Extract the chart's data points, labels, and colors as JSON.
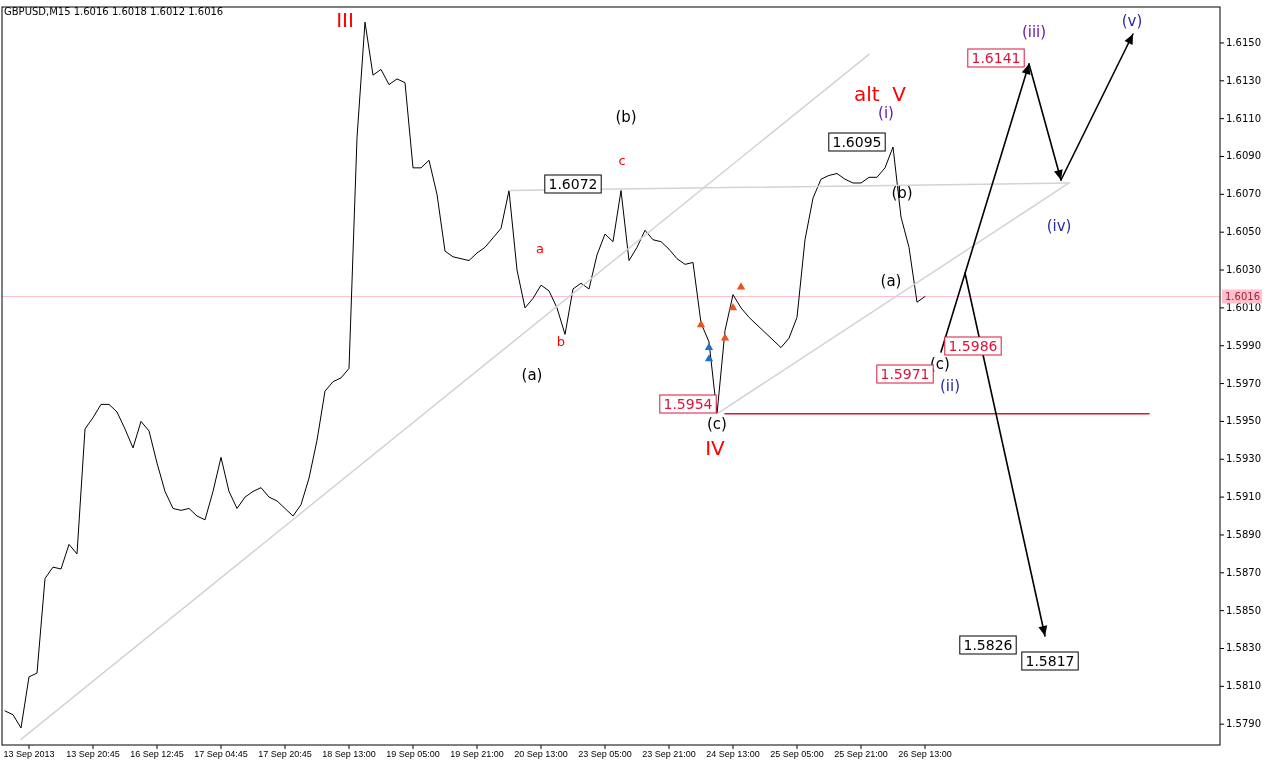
{
  "chart_data": {
    "type": "line",
    "title": "GBPUSD,M15  1.6016 1.6018 1.6012 1.6016",
    "categories": [
      null,
      null,
      null,
      "13 Sep 2013",
      null,
      null,
      null,
      null,
      null,
      null,
      null,
      "13 Sep 20:45",
      null,
      null,
      null,
      null,
      null,
      null,
      null,
      "16 Sep 12:45",
      null,
      null,
      null,
      null,
      null,
      null,
      null,
      "17 Sep 04:45",
      null,
      null,
      null,
      null,
      null,
      null,
      null,
      "17 Sep 20:45",
      null,
      null,
      null,
      null,
      null,
      null,
      null,
      "18 Sep 13:00",
      null,
      null,
      null,
      null,
      null,
      null,
      null,
      "19 Sep 05:00",
      null,
      null,
      null,
      null,
      null,
      null,
      null,
      "19 Sep 21:00",
      null,
      null,
      null,
      null,
      null,
      null,
      null,
      "20 Sep 13:00",
      null,
      null,
      null,
      null,
      null,
      null,
      null,
      "23 Sep 05:00",
      null,
      null,
      null,
      null,
      null,
      null,
      null,
      "23 Sep 21:00",
      null,
      null,
      null,
      null,
      null,
      null,
      null,
      "24 Sep 13:00",
      null,
      null,
      null,
      null,
      null,
      null,
      null,
      "25 Sep 05:00",
      null,
      null,
      null,
      null,
      null,
      null,
      null,
      "25 Sep 21:00",
      null,
      null,
      null,
      null,
      null,
      null,
      null,
      "26 Sep 13:00",
      null,
      null,
      null,
      null,
      null,
      null,
      null,
      null,
      null,
      null,
      null,
      null,
      null,
      null,
      null,
      null,
      null,
      null,
      null,
      null,
      null,
      null,
      null,
      null,
      null,
      null,
      null,
      null
    ],
    "ylim": [
      1.5779,
      1.6169
    ],
    "yticks": [
      {
        "value": 1.615,
        "label": "1.6150"
      },
      {
        "value": 1.613,
        "label": "1.6130"
      },
      {
        "value": 1.611,
        "label": "1.6110"
      },
      {
        "value": 1.609,
        "label": "1.6090"
      },
      {
        "value": 1.607,
        "label": "1.6070"
      },
      {
        "value": 1.605,
        "label": "1.6050"
      },
      {
        "value": 1.603,
        "label": "1.6030"
      },
      {
        "value": 1.601,
        "label": "1.6010"
      },
      {
        "value": 1.599,
        "label": "1.5990"
      },
      {
        "value": 1.597,
        "label": "1.5970"
      },
      {
        "value": 1.595,
        "label": "1.5950"
      },
      {
        "value": 1.593,
        "label": "1.5930"
      },
      {
        "value": 1.591,
        "label": "1.5910"
      },
      {
        "value": 1.589,
        "label": "1.5890"
      },
      {
        "value": 1.587,
        "label": "1.5870"
      },
      {
        "value": 1.585,
        "label": "1.5850"
      },
      {
        "value": 1.583,
        "label": "1.5830"
      },
      {
        "value": 1.581,
        "label": "1.5810"
      },
      {
        "value": 1.579,
        "label": "1.5790"
      }
    ],
    "series": [
      {
        "color": "#000000",
        "values": [
          1.5797,
          1.5795,
          1.5788,
          1.5815,
          1.5817,
          1.5867,
          1.5873,
          1.5872,
          1.5885,
          1.588,
          1.5946,
          1.5952,
          1.5959,
          1.5959,
          1.5955,
          1.5946,
          1.5936,
          1.595,
          1.5945,
          1.5928,
          1.5913,
          1.5904,
          1.5903,
          1.5904,
          1.59,
          1.5898,
          1.5913,
          1.5931,
          1.5913,
          1.5904,
          1.591,
          1.5913,
          1.5915,
          1.591,
          1.5908,
          1.5904,
          1.59,
          1.5906,
          1.592,
          1.594,
          1.5966,
          1.5971,
          1.5973,
          1.5978,
          1.61,
          1.6161,
          1.6133,
          1.6136,
          1.6128,
          1.6131,
          1.6129,
          1.6084,
          1.6084,
          1.6088,
          1.607,
          1.604,
          1.6037,
          1.6036,
          1.6035,
          1.6039,
          1.6042,
          1.6047,
          1.6052,
          1.6072,
          1.603,
          1.601,
          1.6015,
          1.6022,
          1.6019,
          1.601,
          1.5996,
          1.602,
          1.6023,
          1.602,
          1.6038,
          1.6049,
          1.6045,
          1.6072,
          1.6035,
          1.6042,
          1.6051,
          1.6046,
          1.6045,
          1.6041,
          1.6036,
          1.6033,
          1.6034,
          1.6002,
          1.5992,
          1.5954,
          1.5998,
          1.6017,
          1.601,
          1.6005,
          1.6001,
          1.5997,
          1.5993,
          1.5989,
          1.5994,
          1.6005,
          1.6046,
          1.6068,
          1.6078,
          1.608,
          1.6081,
          1.6078,
          1.6076,
          1.6076,
          1.6079,
          1.6079,
          1.6084,
          1.6095,
          1.6058,
          1.6042,
          1.6013,
          1.6016,
          null,
          null,
          null,
          null,
          null,
          null,
          null,
          null,
          null,
          null,
          null,
          null,
          null,
          null,
          null,
          null,
          null,
          null,
          null,
          null,
          null,
          null,
          null,
          null,
          null,
          null,
          null,
          null
        ]
      },
      {
        "color": "#d3d3d3",
        "values": [
          null,
          null,
          1.5782,
          null,
          null,
          null,
          null,
          null,
          null,
          null,
          null,
          null,
          null,
          null,
          null,
          null,
          null,
          null,
          null,
          null,
          null,
          null,
          null,
          null,
          null,
          null,
          null,
          null,
          null,
          null,
          null,
          null,
          null,
          null,
          null,
          null,
          null,
          null,
          null,
          null,
          null,
          null,
          null,
          null,
          null,
          null,
          null,
          null,
          null,
          null,
          null,
          null,
          null,
          null,
          null,
          null,
          null,
          null,
          null,
          null,
          null,
          null,
          null,
          null,
          null,
          null,
          null,
          null,
          null,
          null,
          null,
          null,
          null,
          null,
          null,
          null,
          null,
          null,
          null,
          null,
          null,
          null,
          null,
          null,
          null,
          null,
          null,
          null,
          null,
          null,
          null,
          null,
          null,
          null,
          null,
          null,
          null,
          null,
          null,
          null,
          null,
          null,
          null,
          null,
          null,
          null,
          null,
          null,
          1.6144,
          null,
          null,
          null,
          null,
          null,
          null,
          null,
          null,
          null,
          null,
          null,
          null,
          null,
          null,
          null,
          null,
          null,
          null,
          null,
          null,
          null,
          null,
          null,
          null,
          null,
          null,
          null,
          null,
          null,
          null,
          null,
          null,
          null,
          null,
          null
        ]
      },
      {
        "color": "#d3d3d3",
        "values": [
          null,
          null,
          null,
          null,
          null,
          null,
          null,
          null,
          null,
          null,
          null,
          null,
          null,
          null,
          null,
          null,
          null,
          null,
          null,
          null,
          null,
          null,
          null,
          null,
          null,
          null,
          null,
          null,
          null,
          null,
          null,
          null,
          null,
          null,
          null,
          null,
          null,
          null,
          null,
          null,
          null,
          null,
          null,
          null,
          null,
          null,
          null,
          null,
          null,
          null,
          null,
          null,
          null,
          null,
          null,
          null,
          null,
          null,
          null,
          null,
          null,
          null,
          null,
          1.6072,
          null,
          null,
          null,
          null,
          null,
          null,
          null,
          null,
          null,
          null,
          null,
          null,
          null,
          null,
          null,
          null,
          null,
          null,
          null,
          null,
          null,
          null,
          null,
          null,
          null,
          null,
          null,
          null,
          null,
          null,
          null,
          null,
          null,
          null,
          null,
          null,
          null,
          null,
          null,
          null,
          null,
          null,
          null,
          null,
          null,
          null,
          null,
          null,
          null,
          null,
          null,
          null,
          null,
          null,
          null,
          null,
          null,
          null,
          null,
          null,
          null,
          null,
          null,
          null,
          null,
          null,
          null,
          null,
          null,
          1.6076,
          null,
          null,
          null,
          null,
          null,
          null,
          null,
          null,
          null,
          null
        ]
      },
      {
        "color": "#d3d3d3",
        "values": [
          null,
          null,
          null,
          null,
          null,
          null,
          null,
          null,
          null,
          null,
          null,
          null,
          null,
          null,
          null,
          null,
          null,
          null,
          null,
          null,
          null,
          null,
          null,
          null,
          null,
          null,
          null,
          null,
          null,
          null,
          null,
          null,
          null,
          null,
          null,
          null,
          null,
          null,
          null,
          null,
          null,
          null,
          null,
          null,
          null,
          null,
          null,
          null,
          null,
          null,
          null,
          null,
          null,
          null,
          null,
          null,
          null,
          null,
          null,
          null,
          null,
          null,
          null,
          null,
          null,
          null,
          null,
          null,
          null,
          null,
          null,
          null,
          null,
          null,
          null,
          null,
          null,
          null,
          null,
          null,
          null,
          null,
          null,
          null,
          null,
          null,
          null,
          null,
          null,
          1.5954,
          null,
          null,
          null,
          null,
          null,
          null,
          null,
          null,
          null,
          null,
          null,
          null,
          null,
          null,
          null,
          null,
          null,
          null,
          null,
          null,
          null,
          null,
          null,
          null,
          null,
          null,
          null,
          null,
          null,
          null,
          null,
          null,
          null,
          null,
          null,
          null,
          null,
          null,
          null,
          null,
          null,
          null,
          null,
          1.6076,
          null,
          null,
          null,
          null,
          null,
          null,
          null,
          null,
          null,
          null
        ]
      },
      {
        "color": "#dc143c",
        "values": [
          null,
          null,
          null,
          null,
          null,
          null,
          null,
          null,
          null,
          null,
          null,
          null,
          null,
          null,
          null,
          null,
          null,
          null,
          null,
          null,
          null,
          null,
          null,
          null,
          null,
          null,
          null,
          null,
          null,
          null,
          null,
          null,
          null,
          null,
          null,
          null,
          null,
          null,
          null,
          null,
          null,
          null,
          null,
          null,
          null,
          null,
          null,
          null,
          null,
          null,
          null,
          null,
          null,
          null,
          null,
          null,
          null,
          null,
          null,
          null,
          null,
          null,
          null,
          null,
          null,
          null,
          null,
          null,
          null,
          null,
          null,
          null,
          null,
          null,
          null,
          null,
          null,
          null,
          null,
          null,
          null,
          null,
          null,
          null,
          null,
          null,
          null,
          null,
          null,
          null,
          1.5954,
          null,
          null,
          null,
          null,
          null,
          null,
          null,
          null,
          null,
          null,
          null,
          null,
          null,
          null,
          null,
          null,
          null,
          null,
          null,
          null,
          null,
          null,
          null,
          null,
          null,
          null,
          null,
          null,
          null,
          null,
          null,
          null,
          null,
          null,
          null,
          null,
          null,
          null,
          null,
          null,
          null,
          null,
          null,
          null,
          null,
          null,
          null,
          null,
          null,
          null,
          null,
          null,
          1.5954
        ]
      },
      {
        "type": "scatter",
        "color": "#e8541c",
        "marker": "triangle",
        "values": [
          null,
          null,
          null,
          null,
          null,
          null,
          null,
          null,
          null,
          null,
          null,
          null,
          null,
          null,
          null,
          null,
          null,
          null,
          null,
          null,
          null,
          null,
          null,
          null,
          null,
          null,
          null,
          null,
          null,
          null,
          null,
          null,
          null,
          null,
          null,
          null,
          null,
          null,
          null,
          null,
          null,
          null,
          null,
          null,
          null,
          null,
          null,
          null,
          null,
          null,
          null,
          null,
          null,
          null,
          null,
          null,
          null,
          null,
          null,
          null,
          null,
          null,
          null,
          null,
          null,
          null,
          null,
          null,
          null,
          null,
          null,
          null,
          null,
          null,
          null,
          null,
          null,
          null,
          null,
          null,
          null,
          null,
          null,
          null,
          null,
          null,
          null,
          1.6001,
          null,
          null,
          1.5994,
          1.601,
          1.6021,
          null,
          null,
          null,
          null,
          null,
          null,
          null,
          null,
          null,
          null,
          null,
          null,
          null,
          null,
          null,
          null,
          null,
          null,
          null,
          null,
          null,
          null,
          null,
          null,
          null,
          null,
          null,
          null,
          null,
          null,
          null,
          null,
          null,
          null,
          null,
          null,
          null,
          null,
          null,
          null,
          null,
          null,
          null,
          null,
          null,
          null,
          null,
          null,
          null,
          null,
          null
        ]
      },
      {
        "type": "scatter",
        "color": "#1f6fd0",
        "marker": "triangle",
        "values": [
          null,
          null,
          null,
          null,
          null,
          null,
          null,
          null,
          null,
          null,
          null,
          null,
          null,
          null,
          null,
          null,
          null,
          null,
          null,
          null,
          null,
          null,
          null,
          null,
          null,
          null,
          null,
          null,
          null,
          null,
          null,
          null,
          null,
          null,
          null,
          null,
          null,
          null,
          null,
          null,
          null,
          null,
          null,
          null,
          null,
          null,
          null,
          null,
          null,
          null,
          null,
          null,
          null,
          null,
          null,
          null,
          null,
          null,
          null,
          null,
          null,
          null,
          null,
          null,
          null,
          null,
          null,
          null,
          null,
          null,
          null,
          null,
          null,
          null,
          null,
          null,
          null,
          null,
          null,
          null,
          null,
          null,
          null,
          null,
          null,
          null,
          null,
          null,
          1.5989,
          null,
          null,
          null,
          null,
          null,
          null,
          null,
          null,
          null,
          null,
          null,
          null,
          null,
          null,
          null,
          null,
          null,
          null,
          null,
          null,
          null,
          null,
          null,
          null,
          null,
          null,
          null,
          null,
          null,
          null,
          null,
          null,
          null,
          null,
          null,
          null,
          null,
          null,
          null,
          null,
          null,
          null,
          null,
          null,
          null,
          null,
          null,
          null,
          null,
          null,
          null,
          null,
          null,
          null,
          null
        ]
      },
      {
        "type": "scatter",
        "color": "#1f6fd0",
        "marker": "triangle",
        "values": [
          null,
          null,
          null,
          null,
          null,
          null,
          null,
          null,
          null,
          null,
          null,
          null,
          null,
          null,
          null,
          null,
          null,
          null,
          null,
          null,
          null,
          null,
          null,
          null,
          null,
          null,
          null,
          null,
          null,
          null,
          null,
          null,
          null,
          null,
          null,
          null,
          null,
          null,
          null,
          null,
          null,
          null,
          null,
          null,
          null,
          null,
          null,
          null,
          null,
          null,
          null,
          null,
          null,
          null,
          null,
          null,
          null,
          null,
          null,
          null,
          null,
          null,
          null,
          null,
          null,
          null,
          null,
          null,
          null,
          null,
          null,
          null,
          null,
          null,
          null,
          null,
          null,
          null,
          null,
          null,
          null,
          null,
          null,
          null,
          null,
          null,
          null,
          null,
          1.5983,
          null,
          null,
          null,
          null,
          null,
          null,
          null,
          null,
          null,
          null,
          null,
          null,
          null,
          null,
          null,
          null,
          null,
          null,
          null,
          null,
          null,
          null,
          null,
          null,
          null,
          null,
          null,
          null,
          null,
          null,
          null,
          null,
          null,
          null,
          null,
          null,
          null,
          null,
          null,
          null,
          null,
          null,
          null,
          null,
          null,
          null,
          null,
          null,
          null,
          null,
          null,
          null,
          null,
          null,
          null
        ]
      }
    ],
    "ref_lines": [
      {
        "axis": "y",
        "value": 1.6016,
        "label": "1.6016",
        "color": "#ffc0cb"
      }
    ],
    "annotations": [
      "III",
      "(b)",
      "c",
      "a",
      "b",
      "(a)",
      "(c)",
      "IV",
      "alt  V",
      "(i)",
      "(b)",
      "(a)",
      "(c)",
      "(ii)",
      "(iii)",
      "(iv)",
      "(v)",
      "1.6072",
      "1.6095",
      "1.6141",
      "1.5986",
      "1.5971",
      "1.5954",
      "1.5826",
      "1.5817"
    ]
  }
}
